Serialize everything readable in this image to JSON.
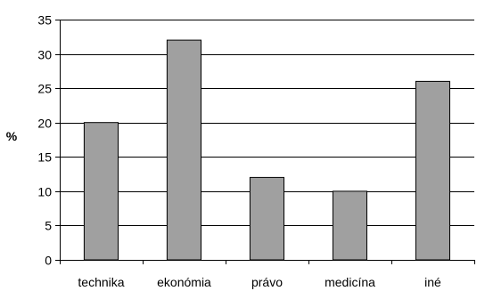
{
  "chart_data": {
    "type": "bar",
    "title": "",
    "xlabel": "",
    "ylabel": "%",
    "categories": [
      "technika",
      "ekonómia",
      "právo",
      "medicína",
      "iné"
    ],
    "values": [
      20,
      32,
      12,
      10,
      26
    ],
    "ylim": [
      0,
      35
    ],
    "yticks": [
      0,
      5,
      10,
      15,
      20,
      25,
      30,
      35
    ],
    "grid": true,
    "legend": "none",
    "bar_color": "#a0a0a0",
    "bar_edge_color": "#000000"
  }
}
